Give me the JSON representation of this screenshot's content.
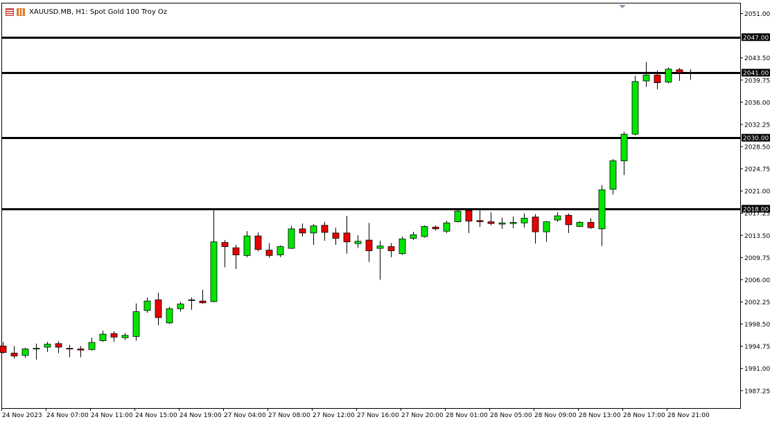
{
  "header": {
    "symbol_text": "XAUUSD.MB, H1:  Spot Gold 100 Troy Oz",
    "icons": [
      "chart-window-icon",
      "indicator-icon"
    ]
  },
  "colors": {
    "bull": "#00e600",
    "bear": "#e60000",
    "wick": "#000000",
    "background": "#ffffff",
    "level_line": "#000000",
    "level_label_bg": "#000000",
    "level_label_text": "#ffffff"
  },
  "chart_data": {
    "type": "candlestick",
    "title": "XAUUSD.MB, H1:  Spot Gold 100 Troy Oz",
    "ylim": [
      1984.3,
      2052.7
    ],
    "y_ticks": [
      "2051.00",
      "2043.50",
      "2039.75",
      "2036.00",
      "2032.25",
      "2028.50",
      "2024.75",
      "2021.00",
      "2017.25",
      "2013.50",
      "2009.75",
      "2006.00",
      "2002.25",
      "1998.50",
      "1994.75",
      "1991.00",
      "1987.25"
    ],
    "x_tick_labels": [
      "24 Nov 2023",
      "24 Nov 07:00",
      "24 Nov 11:00",
      "24 Nov 15:00",
      "24 Nov 19:00",
      "27 Nov 04:00",
      "27 Nov 08:00",
      "27 Nov 12:00",
      "27 Nov 16:00",
      "27 Nov 20:00",
      "28 Nov 01:00",
      "28 Nov 05:00",
      "28 Nov 09:00",
      "28 Nov 13:00",
      "28 Nov 17:00",
      "28 Nov 21:00"
    ],
    "horizontal_levels": [
      {
        "price": 2047.0,
        "label": "2047.00"
      },
      {
        "price": 2041.0,
        "label": "2041.00"
      },
      {
        "price": 2030.0,
        "label": "2030.00"
      },
      {
        "price": 2018.0,
        "label": "2018.00"
      }
    ],
    "candles": [
      {
        "o": 1994.8,
        "h": 1995.5,
        "l": 1993.5,
        "c": 1993.7
      },
      {
        "o": 1993.6,
        "h": 1994.8,
        "l": 1992.7,
        "c": 1993.1
      },
      {
        "o": 1993.2,
        "h": 1994.5,
        "l": 1992.8,
        "c": 1994.3
      },
      {
        "o": 1994.3,
        "h": 1995.2,
        "l": 1992.5,
        "c": 1994.4
      },
      {
        "o": 1994.6,
        "h": 1995.5,
        "l": 1993.8,
        "c": 1995.1
      },
      {
        "o": 1995.2,
        "h": 1995.6,
        "l": 1993.6,
        "c": 1994.6
      },
      {
        "o": 1994.4,
        "h": 1995.0,
        "l": 1992.9,
        "c": 1994.3
      },
      {
        "o": 1994.3,
        "h": 1994.8,
        "l": 1992.9,
        "c": 1994.1
      },
      {
        "o": 1994.2,
        "h": 1996.2,
        "l": 1994.0,
        "c": 1995.4
      },
      {
        "o": 1995.7,
        "h": 1997.4,
        "l": 1995.5,
        "c": 1996.8
      },
      {
        "o": 1996.9,
        "h": 1997.3,
        "l": 1995.5,
        "c": 1996.3
      },
      {
        "o": 1996.2,
        "h": 1997.0,
        "l": 1995.8,
        "c": 1996.6
      },
      {
        "o": 1996.4,
        "h": 2002.0,
        "l": 1995.7,
        "c": 2000.6
      },
      {
        "o": 2000.8,
        "h": 2003.0,
        "l": 2000.4,
        "c": 2002.4
      },
      {
        "o": 2002.6,
        "h": 2003.8,
        "l": 1998.3,
        "c": 1999.6
      },
      {
        "o": 1998.7,
        "h": 2001.4,
        "l": 1998.5,
        "c": 2001.1
      },
      {
        "o": 2001.1,
        "h": 2002.3,
        "l": 2000.6,
        "c": 2001.9
      },
      {
        "o": 2002.6,
        "h": 2003.0,
        "l": 2000.9,
        "c": 2002.6
      },
      {
        "o": 2002.4,
        "h": 2004.3,
        "l": 2001.9,
        "c": 2002.1
      },
      {
        "o": 2002.3,
        "h": 2018.0,
        "l": 2002.2,
        "c": 2012.4
      },
      {
        "o": 2012.3,
        "h": 2012.7,
        "l": 2008.1,
        "c": 2011.6
      },
      {
        "o": 2011.4,
        "h": 2011.9,
        "l": 2007.8,
        "c": 2010.2
      },
      {
        "o": 2010.1,
        "h": 2014.2,
        "l": 2009.8,
        "c": 2013.4
      },
      {
        "o": 2013.4,
        "h": 2014.0,
        "l": 2010.8,
        "c": 2011.1
      },
      {
        "o": 2011.0,
        "h": 2012.2,
        "l": 2009.7,
        "c": 2010.1
      },
      {
        "o": 2010.2,
        "h": 2011.8,
        "l": 2009.8,
        "c": 2011.6
      },
      {
        "o": 2011.3,
        "h": 2015.1,
        "l": 2011.2,
        "c": 2014.6
      },
      {
        "o": 2014.6,
        "h": 2015.5,
        "l": 2013.3,
        "c": 2013.9
      },
      {
        "o": 2013.9,
        "h": 2015.4,
        "l": 2011.9,
        "c": 2015.1
      },
      {
        "o": 2015.2,
        "h": 2015.8,
        "l": 2012.6,
        "c": 2014.0
      },
      {
        "o": 2013.9,
        "h": 2014.8,
        "l": 2011.9,
        "c": 2013.0
      },
      {
        "o": 2013.9,
        "h": 2016.8,
        "l": 2010.4,
        "c": 2012.4
      },
      {
        "o": 2012.1,
        "h": 2013.5,
        "l": 2011.4,
        "c": 2012.5
      },
      {
        "o": 2012.7,
        "h": 2015.6,
        "l": 2009.0,
        "c": 2010.9
      },
      {
        "o": 2011.3,
        "h": 2012.6,
        "l": 2006.0,
        "c": 2011.7
      },
      {
        "o": 2011.6,
        "h": 2012.2,
        "l": 2009.8,
        "c": 2010.9
      },
      {
        "o": 2010.4,
        "h": 2013.3,
        "l": 2010.2,
        "c": 2012.9
      },
      {
        "o": 2013.0,
        "h": 2014.1,
        "l": 2012.7,
        "c": 2013.6
      },
      {
        "o": 2013.3,
        "h": 2015.2,
        "l": 2013.1,
        "c": 2015.0
      },
      {
        "o": 2014.9,
        "h": 2015.2,
        "l": 2014.3,
        "c": 2014.6
      },
      {
        "o": 2014.2,
        "h": 2016.0,
        "l": 2013.9,
        "c": 2015.6
      },
      {
        "o": 2015.8,
        "h": 2018.0,
        "l": 2015.7,
        "c": 2017.6
      },
      {
        "o": 2017.7,
        "h": 2018.0,
        "l": 2013.9,
        "c": 2015.9
      },
      {
        "o": 2016.0,
        "h": 2017.8,
        "l": 2014.9,
        "c": 2015.8
      },
      {
        "o": 2015.8,
        "h": 2017.4,
        "l": 2015.2,
        "c": 2015.5
      },
      {
        "o": 2015.4,
        "h": 2016.5,
        "l": 2014.6,
        "c": 2015.6
      },
      {
        "o": 2015.5,
        "h": 2016.7,
        "l": 2014.7,
        "c": 2015.7
      },
      {
        "o": 2015.6,
        "h": 2017.2,
        "l": 2014.8,
        "c": 2016.4
      },
      {
        "o": 2016.6,
        "h": 2017.1,
        "l": 2012.1,
        "c": 2014.1
      },
      {
        "o": 2014.1,
        "h": 2015.9,
        "l": 2012.4,
        "c": 2015.8
      },
      {
        "o": 2016.1,
        "h": 2017.4,
        "l": 2015.8,
        "c": 2016.8
      },
      {
        "o": 2016.9,
        "h": 2017.2,
        "l": 2013.9,
        "c": 2015.3
      },
      {
        "o": 2015.0,
        "h": 2015.9,
        "l": 2014.9,
        "c": 2015.7
      },
      {
        "o": 2015.7,
        "h": 2016.4,
        "l": 2014.6,
        "c": 2014.8
      },
      {
        "o": 2014.6,
        "h": 2022.0,
        "l": 2011.7,
        "c": 2021.2
      },
      {
        "o": 2021.3,
        "h": 2026.4,
        "l": 2020.4,
        "c": 2026.1
      },
      {
        "o": 2026.1,
        "h": 2031.0,
        "l": 2023.7,
        "c": 2030.6
      },
      {
        "o": 2030.6,
        "h": 2040.5,
        "l": 2030.4,
        "c": 2039.5
      },
      {
        "o": 2039.6,
        "h": 2042.8,
        "l": 2038.6,
        "c": 2040.6
      },
      {
        "o": 2040.6,
        "h": 2041.4,
        "l": 2038.2,
        "c": 2039.3
      },
      {
        "o": 2039.4,
        "h": 2041.9,
        "l": 2039.2,
        "c": 2041.6
      },
      {
        "o": 2041.5,
        "h": 2041.8,
        "l": 2039.6,
        "c": 2041.0
      },
      {
        "o": 2041.0,
        "h": 2041.6,
        "l": 2039.8,
        "c": 2041.0
      }
    ]
  }
}
